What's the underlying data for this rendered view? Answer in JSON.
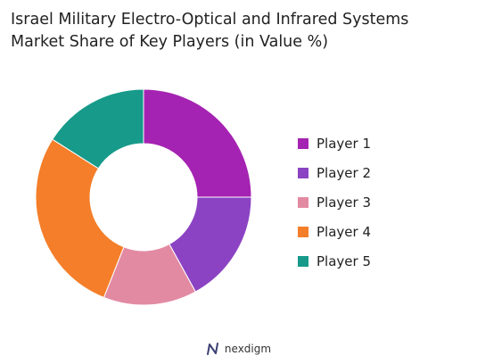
{
  "title_lines": [
    "Israel Military Electro-Optical and Infrared Systems",
    "Market Share of Key Players (in Value %)"
  ],
  "brand": "nexdigm",
  "brand_icon": "nexdigm-logo-icon",
  "chart_data": {
    "type": "pie",
    "donut": true,
    "title": "Israel Military Electro-Optical and Infrared Systems Market Share of Key Players (in Value %)",
    "legend_position": "right",
    "slices": [
      {
        "label": "Player 1",
        "value": 25,
        "color": "#a523b2"
      },
      {
        "label": "Player 2",
        "value": 17,
        "color": "#8b43c3"
      },
      {
        "label": "Player 3",
        "value": 14,
        "color": "#e38aa3"
      },
      {
        "label": "Player 4",
        "value": 28,
        "color": "#f47e2a"
      },
      {
        "label": "Player 5",
        "value": 16,
        "color": "#179a8a"
      }
    ]
  }
}
